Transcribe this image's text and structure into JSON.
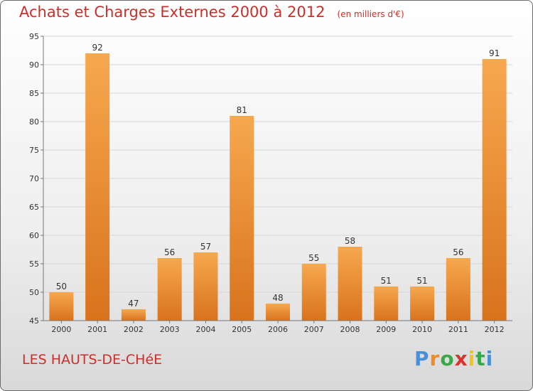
{
  "chart_data": {
    "type": "bar",
    "title": "Achats et Charges Externes 2000 à 2012",
    "subtitle": "(en milliers d'€)",
    "categories": [
      "2000",
      "2001",
      "2002",
      "2003",
      "2004",
      "2005",
      "2006",
      "2007",
      "2008",
      "2009",
      "2010",
      "2011",
      "2012"
    ],
    "values": [
      50,
      92,
      47,
      56,
      57,
      81,
      48,
      55,
      58,
      51,
      51,
      56,
      91
    ],
    "ylim": [
      45,
      95
    ],
    "yticks": [
      45,
      50,
      55,
      60,
      65,
      70,
      75,
      80,
      85,
      90,
      95
    ],
    "grid": true,
    "bar_color_light": "#f7a84f",
    "bar_color_dark": "#d8731c"
  },
  "footer": {
    "location": "LES HAUTS-DE-CHéE",
    "brand": [
      "P",
      "r",
      "o",
      "x",
      "i",
      "t",
      "i"
    ],
    "brand_colors": [
      "#4a90d9",
      "#f08a24",
      "#3aa84a",
      "#e0302a",
      "#f0c419",
      "#3aa84a",
      "#4a90d9"
    ]
  }
}
